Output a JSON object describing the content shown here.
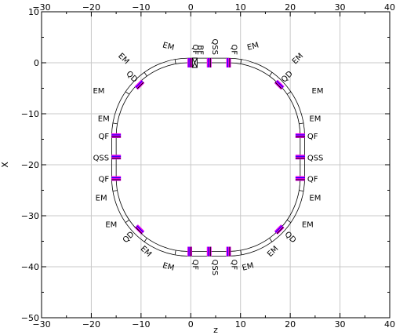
{
  "plot": {
    "xlabel": "z",
    "ylabel": "X",
    "xlim": [
      -30,
      40
    ],
    "ylim": [
      -50,
      10
    ],
    "xticks": [
      -30,
      -20,
      -10,
      0,
      10,
      20,
      30,
      40
    ],
    "yticks": [
      10,
      0,
      -10,
      -20,
      -30,
      -40,
      -50
    ],
    "grid": true,
    "colors": {
      "frame": "#000000",
      "grid": "#c8c8c8",
      "ring": "#000000",
      "magnet_fill": "#ee00ee",
      "magnet_mark": "#0000ff",
      "bf_fill": "#ffffff"
    }
  },
  "lattice": {
    "ring": {
      "straight_z": [
        0.5,
        7.5
      ],
      "side_x": [
        -15,
        22
      ],
      "top_x": 0,
      "bottom_x": -37,
      "arc_radius": 14.5
    },
    "elements": [
      {
        "label": "BF",
        "type": "bend",
        "z": 0.8,
        "x": 0,
        "side": "top"
      },
      {
        "label": "QF",
        "type": "quad",
        "z": -0.2,
        "x": 0,
        "side": "top"
      },
      {
        "label": "QSS",
        "type": "quad",
        "z": 3.7,
        "x": 0,
        "side": "top"
      },
      {
        "label": "QF",
        "type": "quad",
        "z": 7.6,
        "x": 0,
        "side": "top"
      },
      {
        "label": "QF",
        "type": "quad",
        "z": -0.2,
        "x": -37,
        "side": "bottom"
      },
      {
        "label": "QSS",
        "type": "quad",
        "z": 3.7,
        "x": -37,
        "side": "bottom"
      },
      {
        "label": "QF",
        "type": "quad",
        "z": 7.6,
        "x": -37,
        "side": "bottom"
      },
      {
        "label": "QF",
        "type": "quad",
        "z": -15,
        "x": -14.3,
        "side": "left"
      },
      {
        "label": "QSS",
        "type": "quad",
        "z": -15,
        "x": -18.5,
        "side": "left"
      },
      {
        "label": "QF",
        "type": "quad",
        "z": -15,
        "x": -22.7,
        "side": "left"
      },
      {
        "label": "QF",
        "type": "quad",
        "z": 22,
        "x": -14.3,
        "side": "right"
      },
      {
        "label": "QSS",
        "type": "quad",
        "z": 22,
        "x": -18.5,
        "side": "right"
      },
      {
        "label": "QF",
        "type": "quad",
        "z": 22,
        "x": -22.7,
        "side": "right"
      },
      {
        "label": "QD",
        "type": "quad_diag",
        "z": -10.3,
        "x": -4.3,
        "side": "arc-tl"
      },
      {
        "label": "QD",
        "type": "quad_diag",
        "z": 17.8,
        "x": -4.3,
        "side": "arc-tr"
      },
      {
        "label": "QD",
        "type": "quad_diag",
        "z": -10.3,
        "x": -32.7,
        "side": "arc-bl"
      },
      {
        "label": "QD",
        "type": "quad_diag",
        "z": 17.8,
        "x": -32.7,
        "side": "arc-br"
      }
    ],
    "em_labels": [
      {
        "label": "EM",
        "z": -4.5,
        "x": 3.2,
        "rot": 15
      },
      {
        "label": "EM",
        "z": -13.5,
        "x": 0.8,
        "rot": 45
      },
      {
        "label": "EM",
        "z": -18.5,
        "x": -5.5,
        "rot": 0
      },
      {
        "label": "EM",
        "z": -17.5,
        "x": -11,
        "rot": 0
      },
      {
        "label": "EM",
        "z": 12.5,
        "x": 3.2,
        "rot": -15
      },
      {
        "label": "EM",
        "z": 21.5,
        "x": 0.8,
        "rot": -45
      },
      {
        "label": "EM",
        "z": 25.5,
        "x": -5.5,
        "rot": 0
      },
      {
        "label": "EM",
        "z": 25,
        "x": -11,
        "rot": 0
      },
      {
        "label": "EM",
        "z": -18,
        "x": -26.5,
        "rot": 0
      },
      {
        "label": "EM",
        "z": -16,
        "x": -31.8,
        "rot": 0
      },
      {
        "label": "EM",
        "z": -9,
        "x": -37,
        "rot": 45
      },
      {
        "label": "EM",
        "z": -4.5,
        "x": -40,
        "rot": 15
      },
      {
        "label": "EM",
        "z": 25,
        "x": -26.5,
        "rot": 0
      },
      {
        "label": "EM",
        "z": 23.5,
        "x": -31.8,
        "rot": 0
      },
      {
        "label": "EM",
        "z": 16.5,
        "x": -37,
        "rot": -45
      },
      {
        "label": "EM",
        "z": 11.5,
        "x": -40,
        "rot": -15
      }
    ]
  }
}
